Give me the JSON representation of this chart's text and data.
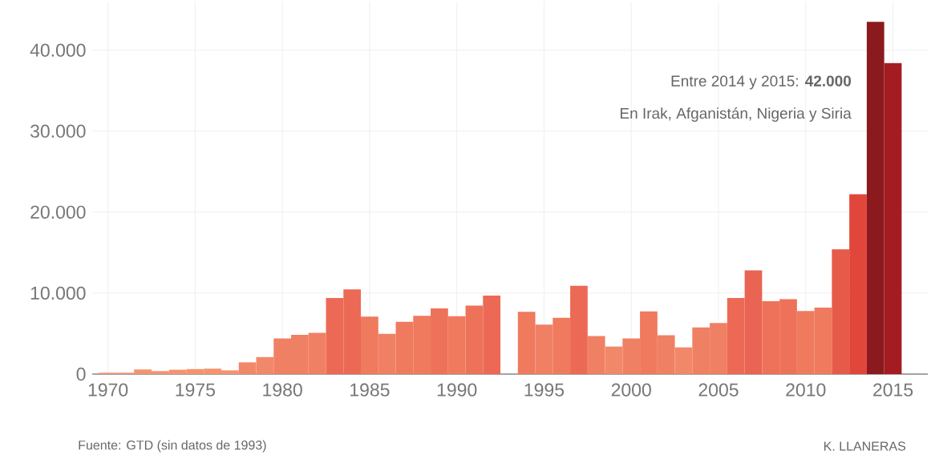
{
  "chart_data": {
    "type": "bar",
    "x": [
      1970,
      1971,
      1972,
      1973,
      1974,
      1975,
      1976,
      1977,
      1978,
      1979,
      1980,
      1981,
      1982,
      1983,
      1984,
      1985,
      1986,
      1987,
      1988,
      1989,
      1990,
      1991,
      1992,
      1993,
      1994,
      1995,
      1996,
      1997,
      1998,
      1999,
      2000,
      2001,
      2002,
      2003,
      2004,
      2005,
      2006,
      2007,
      2008,
      2009,
      2010,
      2011,
      2012,
      2013,
      2014,
      2015
    ],
    "values": [
      170,
      170,
      570,
      370,
      540,
      620,
      670,
      460,
      1450,
      2100,
      4400,
      4850,
      5100,
      9400,
      10450,
      7100,
      4980,
      6450,
      7200,
      8100,
      7150,
      8450,
      9700,
      null,
      7700,
      6100,
      6950,
      10900,
      4700,
      3400,
      4400,
      7750,
      4800,
      3300,
      5750,
      6300,
      9400,
      12800,
      9000,
      9250,
      7800,
      8200,
      15400,
      22200,
      43500,
      38400
    ],
    "colors": [
      "#f4936f",
      "#f4936f",
      "#f4936f",
      "#f4936f",
      "#f4936f",
      "#f4936f",
      "#f4936f",
      "#f4936f",
      "#f2886a",
      "#f2886a",
      "#f08064",
      "#f08064",
      "#f08064",
      "#ec6a55",
      "#ec6a55",
      "#ef7a5e",
      "#f08064",
      "#ef7a5e",
      "#ef7a5e",
      "#ed7259",
      "#ef7a5e",
      "#ed7259",
      "#ec6a55",
      "#f08064",
      "#ef7a5e",
      "#f08064",
      "#ef7a5e",
      "#ec6a55",
      "#f08064",
      "#f2886a",
      "#f08064",
      "#ef7a5e",
      "#f08064",
      "#f2886a",
      "#f08064",
      "#f08064",
      "#ec6a55",
      "#e96453",
      "#ed7259",
      "#ed7259",
      "#ef7a5e",
      "#ef7a5e",
      "#e65a4a",
      "#e0473a",
      "#8b1a1f",
      "#a41c22"
    ],
    "xlim": [
      1969.1,
      2017
    ],
    "xticks": [
      1970,
      1975,
      1980,
      1985,
      1990,
      1995,
      2000,
      2005,
      2010,
      2015
    ],
    "ylim": [
      0,
      46000
    ],
    "yticks": [
      0,
      {
        "value": 10000,
        "label": "10.000"
      },
      {
        "value": 20000,
        "label": "20.000"
      },
      {
        "value": 30000,
        "label": "30.000"
      },
      {
        "value": 40000,
        "label": "40.000"
      }
    ],
    "grid": true,
    "annotations": [
      "Entre 2014 y 2015: **42.000**",
      "En Irak, Afganistán, Nigeria y Siria",
      "Fuente: GTD (sin datos de 1993)",
      "K. LLANERAS"
    ]
  }
}
